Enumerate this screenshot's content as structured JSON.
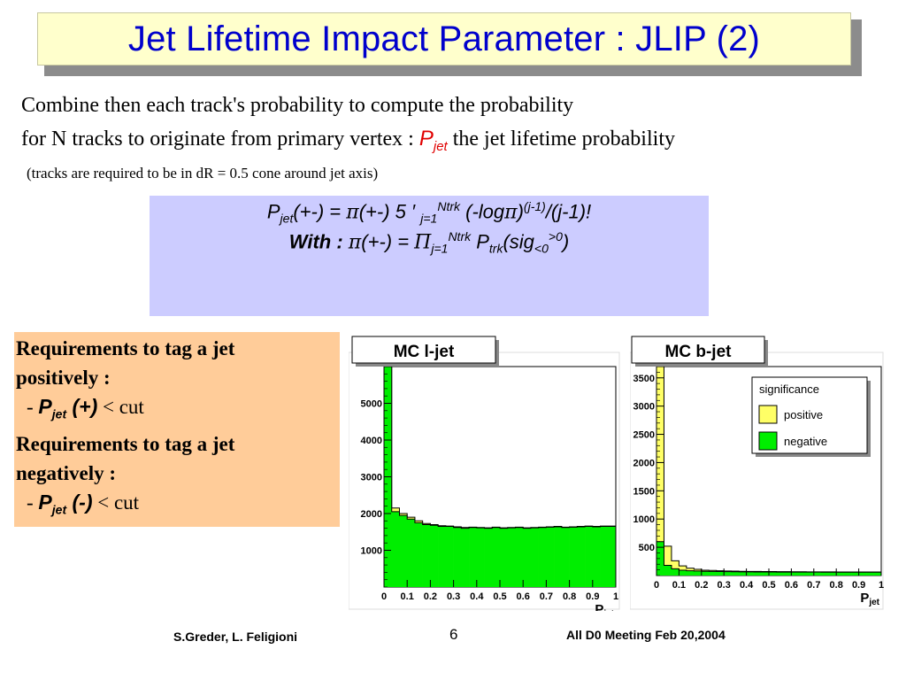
{
  "title": "Jet Lifetime Impact Parameter : JLIP (2)",
  "intro": {
    "line1": "Combine then each track's probability to compute the probability",
    "line2_prefix": "for N tracks to originate from primary vertex : ",
    "symbol": "P",
    "symbol_sub": "jet",
    "line2_suffix": " the jet lifetime probability",
    "note": "(tracks are required to be in dR = 0.5  cone around jet axis)"
  },
  "formula": {
    "line1": {
      "p": "P",
      "p_sub": "jet",
      "a": "(+-) = ",
      "pi": "π",
      "b": "(+-) 5 ′ ",
      "sum_sub": "j=1",
      "sum_sup": "Ntrk",
      "c": " (-log",
      "pi2": "π",
      "d": ")",
      "exp": "(j-1)",
      "e": "/(j-1)!"
    },
    "line2": {
      "with": "With : ",
      "pi": "π",
      "a": "(+-) = ",
      "prod": "Π",
      "prod_sub": "j=1",
      "prod_sup": "Ntrk",
      "p": "  P",
      "p_sub": "trk",
      "b": "(sig",
      "sig_sub": "<0",
      "sig_sup": ">0",
      "c": ")"
    }
  },
  "requirements": {
    "pos_line1": "Requirements to tag a jet",
    "pos_line2": "positively :",
    "pos_item": {
      "dash": "- ",
      "p": "P",
      "sub": "jet",
      "sign": " (+)",
      "cut": " < cut"
    },
    "neg_line1": "Requirements to tag a jet",
    "neg_line2": "negatively :",
    "neg_item": {
      "dash": "- ",
      "p": "P",
      "sub": "jet",
      "sign": " (-)",
      "cut": " < cut"
    }
  },
  "colors": {
    "title_text": "#0000cc",
    "title_bg": "#ffffcc",
    "formula_bg": "#ccccff",
    "req_bg": "#ffcc99",
    "negative_fill": "#00ee00",
    "positive_fill": "#ffff66"
  },
  "chart_data": [
    {
      "type": "histogram",
      "title": "MC l-jet",
      "xlabel": "P_jet",
      "xlim": [
        0,
        1
      ],
      "ylim": [
        0,
        6000
      ],
      "x_ticks": [
        "0",
        "0.1",
        "0.2",
        "0.3",
        "0.4",
        "0.5",
        "0.6",
        "0.7",
        "0.8",
        "0.9",
        "1"
      ],
      "y_ticks": [
        "1000",
        "2000",
        "3000",
        "4000",
        "5000"
      ],
      "y_tick_values": [
        1000,
        2000,
        3000,
        4000,
        5000
      ],
      "series": [
        {
          "name": "negative",
          "color": "#00ee00",
          "values": [
            6300,
            2050,
            1950,
            1850,
            1750,
            1700,
            1680,
            1650,
            1650,
            1620,
            1600,
            1620,
            1610,
            1600,
            1620,
            1600,
            1610,
            1620,
            1600,
            1610,
            1620,
            1630,
            1640,
            1620,
            1630,
            1640,
            1650,
            1640,
            1650,
            1650
          ]
        },
        {
          "name": "positive",
          "color": "#ffff66",
          "values": [
            6500,
            2150,
            2000,
            1900,
            1800,
            1730,
            1700,
            1670,
            1660,
            1640,
            1620,
            1630,
            1620,
            1610,
            1630,
            1610,
            1620,
            1630,
            1610,
            1620,
            1630,
            1640,
            1650,
            1630,
            1640,
            1650,
            1660,
            1650,
            1660,
            1660
          ]
        }
      ]
    },
    {
      "type": "histogram",
      "title": "MC b-jet",
      "xlabel": "P_jet",
      "xlim": [
        0,
        1
      ],
      "ylim": [
        0,
        3700
      ],
      "x_ticks": [
        "0",
        "0.1",
        "0.2",
        "0.3",
        "0.4",
        "0.5",
        "0.6",
        "0.7",
        "0.8",
        "0.9",
        "1"
      ],
      "y_ticks": [
        "500",
        "1000",
        "1500",
        "2000",
        "2500",
        "3000",
        "3500"
      ],
      "y_tick_values": [
        500,
        1000,
        1500,
        2000,
        2500,
        3000,
        3500
      ],
      "legend": {
        "title": "significance",
        "entries": [
          "positive",
          "negative"
        ],
        "position": "top-right"
      },
      "series": [
        {
          "name": "positive",
          "color": "#ffff66",
          "values": [
            3700,
            520,
            260,
            170,
            130,
            110,
            95,
            90,
            85,
            80,
            78,
            75,
            72,
            72,
            70,
            70,
            68,
            68,
            66,
            66,
            65,
            65,
            64,
            64,
            63,
            63,
            62,
            62,
            62,
            62
          ]
        },
        {
          "name": "negative",
          "color": "#00ee00",
          "values": [
            600,
            180,
            120,
            95,
            85,
            80,
            75,
            72,
            70,
            68,
            66,
            65,
            64,
            63,
            62,
            62,
            61,
            61,
            60,
            60,
            60,
            60,
            59,
            59,
            59,
            59,
            58,
            58,
            58,
            58
          ]
        }
      ]
    }
  ],
  "footer": {
    "authors": "S.Greder, L. Feligioni",
    "page": "6",
    "meeting": "All D0 Meeting   Feb  20,2004"
  }
}
